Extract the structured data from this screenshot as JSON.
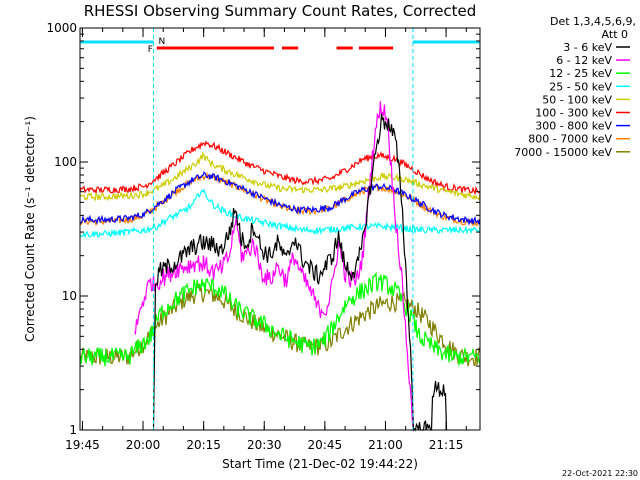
{
  "chart_data": {
    "type": "line",
    "title": "RHESSI Observing Summary Count Rates, Corrected",
    "xlabel": "Start Time (21-Dec-02 19:44:22)",
    "ylabel": "Corrected Count Rate (s⁻¹ detector⁻¹)",
    "yscale": "log",
    "ylim": [
      1,
      1000
    ],
    "y_ticks": [
      {
        "value": 1,
        "label": "1"
      },
      {
        "value": 10,
        "label": "10"
      },
      {
        "value": 100,
        "label": "100"
      },
      {
        "value": 1000,
        "label": "1000"
      }
    ],
    "x_range_minutes": [
      0,
      99
    ],
    "x_ticks": [
      {
        "t": 0.6,
        "label": "19:45"
      },
      {
        "t": 15.6,
        "label": "20:00"
      },
      {
        "t": 30.6,
        "label": "20:15"
      },
      {
        "t": 45.6,
        "label": "20:30"
      },
      {
        "t": 60.6,
        "label": "20:45"
      },
      {
        "t": 75.6,
        "label": "21:00"
      },
      {
        "t": 90.6,
        "label": "21:15"
      }
    ],
    "legend": {
      "placement": "right",
      "header": [
        "Det 1,3,4,5,6,9,",
        "Att 0"
      ],
      "entries": [
        {
          "label": "3 - 6 keV",
          "color": "#000000"
        },
        {
          "label": "6 - 12 keV",
          "color": "#ff00ff"
        },
        {
          "label": "12 - 25 keV",
          "color": "#00ff00"
        },
        {
          "label": "25 - 50 keV",
          "color": "#00ffff"
        },
        {
          "label": "50 - 100 keV",
          "color": "#cccc00"
        },
        {
          "label": "100 - 300 keV",
          "color": "#ff0000"
        },
        {
          "label": "300 - 800 keV",
          "color": "#0000ff"
        },
        {
          "label": "800 - 7000 keV",
          "color": "#ff8000"
        },
        {
          "label": "7000 - 15000 keV",
          "color": "#808000"
        }
      ]
    },
    "annotations": {
      "night_marker": "N",
      "flare_marker": "F",
      "night_color": "#00e0ff",
      "flare_color": "#ff0000",
      "night_intervals": [
        [
          0,
          18.2
        ],
        [
          82.4,
          99
        ]
      ],
      "flare_intervals": [
        [
          19,
          48
        ],
        [
          50,
          54
        ],
        [
          63.5,
          67.5
        ],
        [
          69,
          77.5
        ]
      ],
      "day_boundaries": [
        18.2,
        82.4
      ]
    },
    "series": [
      {
        "name": "3 - 6 keV",
        "color": "#000000",
        "t": [
          18.2,
          18.6,
          19.4,
          21,
          24,
          27,
          30,
          33,
          35,
          37,
          38.5,
          40,
          41.5,
          43,
          45,
          47,
          49,
          51,
          53,
          55,
          57,
          59,
          61,
          62.5,
          64,
          65.5,
          67,
          68.5,
          70,
          71.5,
          73,
          74.5,
          76,
          78,
          79.5,
          81,
          82,
          82.5,
          83,
          87,
          87.2,
          90.5,
          90.7
        ],
        "v": [
          1,
          10,
          15,
          16,
          18,
          22,
          25,
          24,
          22,
          30,
          45,
          26,
          25,
          34,
          22,
          20,
          25,
          18,
          28,
          19,
          16,
          14,
          17,
          20,
          28,
          17,
          15,
          16,
          25,
          55,
          110,
          200,
          200,
          150,
          60,
          10,
          3,
          1,
          1,
          1,
          2,
          2,
          1
        ]
      },
      {
        "name": "6 - 12 keV",
        "color": "#ff00ff",
        "t": [
          13.5,
          14.5,
          15.5,
          16.5,
          17.5,
          18.5,
          19.5,
          21,
          24,
          27,
          29,
          31,
          33,
          35,
          37,
          38.5,
          40,
          41.5,
          43,
          45,
          47,
          49,
          51,
          53,
          55,
          57,
          59,
          61,
          62.5,
          64,
          65.5,
          67,
          68.5,
          70,
          71.5,
          73,
          74.5,
          76,
          77.5,
          79.5,
          81,
          82,
          82.5
        ],
        "v": [
          5,
          7,
          9,
          11,
          13,
          12,
          13,
          14,
          16,
          17,
          18,
          17,
          15,
          16,
          20,
          38,
          20,
          21,
          25,
          15,
          13,
          17,
          13,
          20,
          14,
          11,
          8,
          8,
          12,
          25,
          15,
          13,
          13,
          20,
          60,
          170,
          260,
          220,
          60,
          15,
          4,
          1.5,
          1
        ]
      },
      {
        "name": "12 - 25 keV",
        "color": "#00ff00",
        "t": [
          0,
          8,
          12,
          14,
          16,
          17.5,
          18.5,
          20,
          23,
          26,
          29,
          32,
          35,
          38,
          42,
          46,
          50,
          54,
          56,
          58,
          60,
          62,
          64,
          66,
          68,
          70,
          72,
          74,
          76,
          78,
          80,
          82,
          84,
          88,
          92,
          95,
          99
        ],
        "v": [
          3.5,
          3.5,
          3.5,
          4,
          4.5,
          5,
          6,
          7.5,
          9,
          10.5,
          12,
          12,
          11,
          8.5,
          7,
          6,
          5,
          4.5,
          4.2,
          4.2,
          4.5,
          5.5,
          7,
          9,
          10,
          11,
          12,
          13,
          12,
          11,
          9,
          7,
          5,
          4,
          3.5,
          3.5,
          3.5
        ]
      },
      {
        "name": "25 - 50 keV",
        "color": "#00ffff",
        "t": [
          0,
          6,
          12,
          16,
          19,
          22,
          25,
          28,
          30,
          31.5,
          33,
          35,
          38,
          42,
          46,
          50,
          55,
          60,
          65,
          70,
          75,
          80,
          85,
          90,
          95,
          99
        ],
        "v": [
          29,
          29,
          30,
          31,
          33,
          38,
          42,
          48,
          62,
          55,
          48,
          44,
          40,
          37,
          35,
          33,
          31,
          31,
          32,
          33,
          33,
          32,
          31,
          31,
          31,
          31
        ]
      },
      {
        "name": "50 - 100 keV",
        "color": "#cccc00",
        "t": [
          0,
          6,
          12,
          16,
          20,
          24,
          27,
          29,
          30.5,
          32,
          34,
          38,
          42,
          46,
          50,
          55,
          60,
          65,
          70,
          75,
          80,
          85,
          90,
          95,
          99
        ],
        "v": [
          55,
          55,
          56,
          58,
          65,
          78,
          90,
          100,
          112,
          100,
          92,
          82,
          74,
          67,
          63,
          62,
          62,
          65,
          72,
          78,
          75,
          67,
          61,
          57,
          55
        ]
      },
      {
        "name": "100 - 300 keV",
        "color": "#ff0000",
        "t": [
          0,
          6,
          12,
          16,
          20,
          24,
          28,
          31,
          34,
          38,
          42,
          46,
          50,
          54,
          58,
          62,
          66,
          70,
          74,
          78,
          82,
          86,
          90,
          95,
          99
        ],
        "v": [
          62,
          62,
          63,
          66,
          80,
          100,
          125,
          140,
          128,
          110,
          95,
          85,
          77,
          72,
          72,
          75,
          88,
          105,
          112,
          105,
          90,
          75,
          66,
          62,
          60
        ]
      },
      {
        "name": "300 - 800 keV",
        "color": "#0000ff",
        "t": [
          0,
          6,
          12,
          16,
          20,
          24,
          28,
          31,
          34,
          38,
          42,
          46,
          50,
          54,
          58,
          62,
          66,
          70,
          74,
          78,
          82,
          86,
          90,
          95,
          99
        ],
        "v": [
          37,
          37,
          38,
          41,
          50,
          62,
          74,
          80,
          76,
          68,
          60,
          53,
          47,
          44,
          44,
          46,
          54,
          62,
          66,
          62,
          54,
          46,
          40,
          37,
          36
        ]
      },
      {
        "name": "800 - 7000 keV",
        "color": "#ff8000",
        "t": [
          0,
          6,
          12,
          16,
          20,
          24,
          28,
          31,
          34,
          38,
          42,
          46,
          50,
          54,
          58,
          62,
          66,
          70,
          74,
          78,
          82,
          86,
          90,
          95,
          99
        ],
        "v": [
          36,
          36,
          37,
          40,
          49,
          61,
          73,
          79,
          75,
          67,
          59,
          52,
          46,
          43,
          43,
          45,
          53,
          61,
          65,
          61,
          53,
          45,
          39,
          36,
          35
        ]
      },
      {
        "name": "7000 - 15000 keV",
        "color": "#808000",
        "t": [
          0,
          8,
          12,
          14,
          16,
          18,
          20,
          23,
          26,
          29,
          32,
          35,
          38,
          41,
          44,
          47,
          50,
          53,
          56,
          59,
          62,
          65,
          68,
          71,
          74,
          77,
          80,
          83,
          86,
          89,
          92,
          95,
          99
        ],
        "v": [
          3.5,
          3.5,
          3.5,
          4,
          4.5,
          5.5,
          6.5,
          8,
          9.5,
          10.5,
          10.5,
          9.5,
          8,
          7,
          6,
          5.5,
          5,
          4.5,
          4.2,
          4.2,
          4.5,
          5.5,
          6.5,
          7.5,
          8.5,
          9,
          9,
          8,
          6.5,
          5,
          4,
          3.5,
          3.5
        ]
      }
    ]
  },
  "footer": {
    "timestamp": "22-Oct-2021 22:30"
  }
}
